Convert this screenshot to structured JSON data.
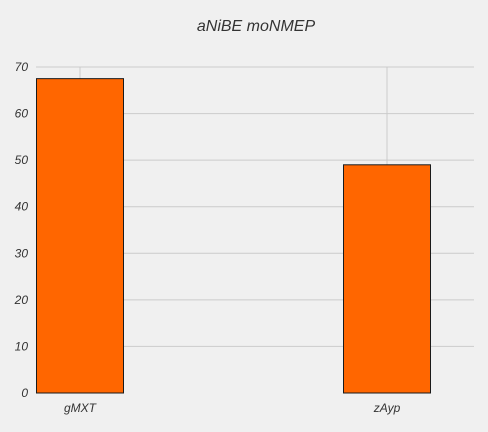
{
  "chart_data": {
    "type": "bar",
    "title": "aNiBE moNMEP",
    "xlabel": "",
    "ylabel": "",
    "categories": [
      "gMXT",
      "zAyp"
    ],
    "values": [
      67.5,
      49
    ],
    "ylim": [
      0,
      70
    ],
    "yticks": [
      0,
      10,
      20,
      30,
      40,
      50,
      60,
      70
    ],
    "grid": true,
    "legend": "none",
    "colors": {
      "bar": "#ff6600",
      "bar_edge": "#1a1a1a",
      "grid": "#cbcbcb",
      "background": "#f0f0f0",
      "text": "#333333"
    }
  }
}
